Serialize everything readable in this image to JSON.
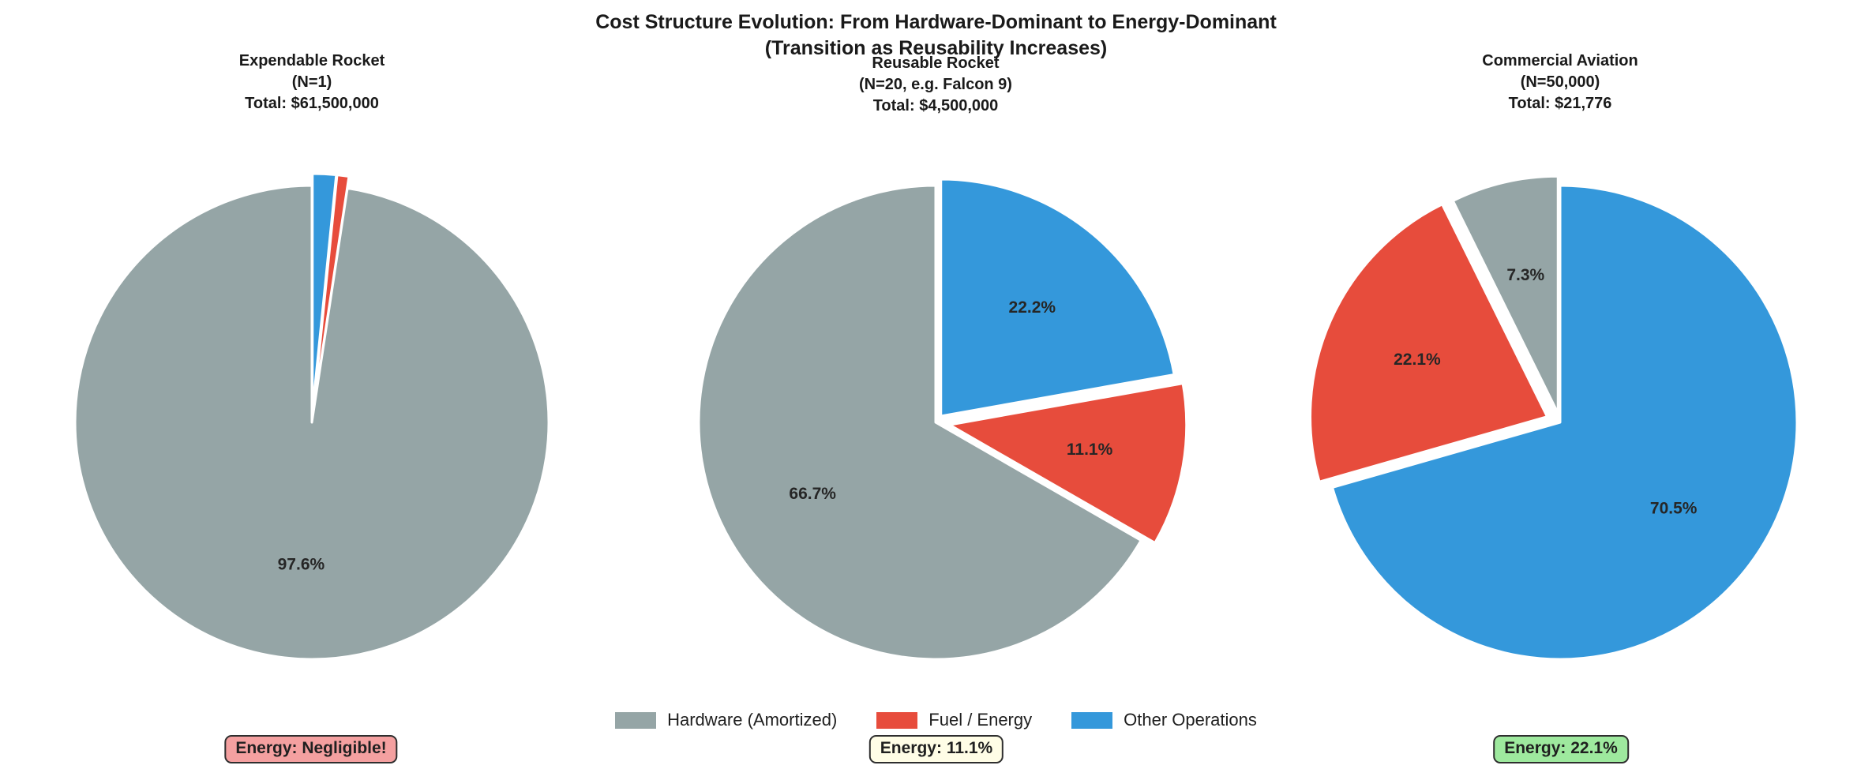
{
  "figure": {
    "title_line1": "Cost Structure Evolution: From Hardware-Dominant to Energy-Dominant",
    "title_line2": "(Transition as Reusability Increases)"
  },
  "colors": {
    "hardware": "#95a5a6",
    "fuel": "#e74c3c",
    "other": "#3498db",
    "label_text": "#262626",
    "edge": "#ffffff"
  },
  "legend": [
    {
      "label": "Hardware (Amortized)",
      "color_key": "hardware"
    },
    {
      "label": "Fuel / Energy",
      "color_key": "fuel"
    },
    {
      "label": "Other Operations",
      "color_key": "other"
    }
  ],
  "chart_data": [
    {
      "type": "pie",
      "title": "Expendable Rocket",
      "subtitle": "(N=1)",
      "total_label": "Total: $61,500,000",
      "labels": [
        "Hardware (Amortized)",
        "Fuel / Energy",
        "Other Operations"
      ],
      "values_pct": [
        97.6,
        0.8,
        1.6
      ],
      "pct_labels": [
        "97.6%",
        "",
        ""
      ],
      "color_keys": [
        "hardware",
        "fuel",
        "other"
      ],
      "explode": [
        0,
        0.05,
        0.05
      ],
      "startangle": 90,
      "counterclockwise": true,
      "pctdistance": 0.6,
      "annotation": {
        "text": "Energy: Negligible!",
        "bg": "#f4a0a0"
      }
    },
    {
      "type": "pie",
      "title": "Reusable Rocket",
      "subtitle": "(N=20, e.g. Falcon 9)",
      "total_label": "Total: $4,500,000",
      "labels": [
        "Hardware (Amortized)",
        "Fuel / Energy",
        "Other Operations"
      ],
      "values_pct": [
        66.7,
        11.1,
        22.2
      ],
      "pct_labels": [
        "66.7%",
        "11.1%",
        "22.2%"
      ],
      "color_keys": [
        "hardware",
        "fuel",
        "other"
      ],
      "explode": [
        0,
        0.06,
        0.035
      ],
      "startangle": 90,
      "counterclockwise": true,
      "pctdistance": 0.6,
      "annotation": {
        "text": "Energy: 11.1%",
        "bg": "#fffde6"
      }
    },
    {
      "type": "pie",
      "title": "Commercial Aviation",
      "subtitle": "(N=50,000)",
      "total_label": "Total: $21,776",
      "labels": [
        "Hardware (Amortized)",
        "Fuel / Energy",
        "Other Operations"
      ],
      "values_pct": [
        7.3,
        22.1,
        70.5
      ],
      "pct_labels": [
        "7.3%",
        "22.1%",
        "70.5%"
      ],
      "color_keys": [
        "hardware",
        "fuel",
        "other"
      ],
      "explode": [
        0.04,
        0.06,
        0
      ],
      "startangle": 90,
      "counterclockwise": true,
      "pctdistance": 0.6,
      "annotation": {
        "text": "Energy: 22.1%",
        "bg": "#9ee99e"
      }
    }
  ]
}
